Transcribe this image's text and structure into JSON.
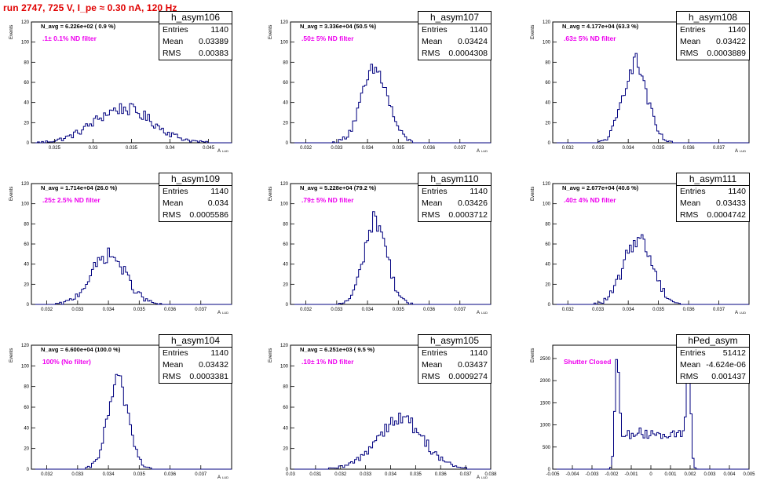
{
  "page_title": "run 2747,   725 V, I_pe ≈ 0.30 nA, 120 Hz",
  "chart_data": [
    {
      "type": "bar",
      "hist_name": "h_asym106",
      "navg": "N_avg = 6.226e+02 ( 0.9 %)",
      "filter": ".1± 0.1% ND filter",
      "entries": "1140",
      "mean": "0.03389",
      "rms": "0.00383",
      "ylabel": "Events",
      "xlabel": "A",
      "xlim": [
        0.022,
        0.048
      ],
      "ylim": [
        0,
        120
      ],
      "xticks": [
        0.025,
        0.03,
        0.035,
        0.04,
        0.045
      ],
      "xticklabels": [
        "0.025",
        "0.03",
        "0.035",
        "0.04",
        "0.045"
      ],
      "yticks": [
        0,
        20,
        40,
        60,
        80,
        100,
        120
      ],
      "shape": "gauss",
      "mu": 0.0339,
      "sigma": 0.0038,
      "peak": 34,
      "nbins": 100
    },
    {
      "type": "bar",
      "hist_name": "h_asym107",
      "navg": "N_avg = 3.336e+04 (50.5 %)",
      "filter": ".50± 5% ND filter",
      "entries": "1140",
      "mean": "0.03424",
      "rms": "0.0004308",
      "ylabel": "Events",
      "xlabel": "A",
      "xlim": [
        0.0315,
        0.038
      ],
      "ylim": [
        0,
        120
      ],
      "xticks": [
        0.032,
        0.033,
        0.034,
        0.035,
        0.036,
        0.037
      ],
      "xticklabels": [
        "0.032",
        "0.033",
        "0.034",
        "0.035",
        "0.036",
        "0.037"
      ],
      "yticks": [
        0,
        20,
        40,
        60,
        80,
        100,
        120
      ],
      "shape": "gauss",
      "mu": 0.03424,
      "sigma": 0.00043,
      "peak": 72,
      "nbins": 100
    },
    {
      "type": "bar",
      "hist_name": "h_asym108",
      "navg": "N_avg = 4.177e+04 (63.3 %)",
      "filter": ".63± 5% ND filter",
      "entries": "1140",
      "mean": "0.03422",
      "rms": "0.0003889",
      "ylabel": "Events",
      "xlabel": "A",
      "xlim": [
        0.0315,
        0.038
      ],
      "ylim": [
        0,
        120
      ],
      "xticks": [
        0.032,
        0.033,
        0.034,
        0.035,
        0.036,
        0.037
      ],
      "xticklabels": [
        "0.032",
        "0.033",
        "0.034",
        "0.035",
        "0.036",
        "0.037"
      ],
      "yticks": [
        0,
        20,
        40,
        60,
        80,
        100,
        120
      ],
      "shape": "gauss",
      "mu": 0.03422,
      "sigma": 0.00039,
      "peak": 80,
      "nbins": 100
    },
    {
      "type": "bar",
      "hist_name": "h_asym109",
      "navg": "N_avg = 1.714e+04 (26.0 %)",
      "filter": ".25± 2.5% ND filter",
      "entries": "1140",
      "mean": "0.034",
      "rms": "0.0005586",
      "ylabel": "Events",
      "xlabel": "A",
      "xlim": [
        0.0315,
        0.038
      ],
      "ylim": [
        0,
        120
      ],
      "xticks": [
        0.032,
        0.033,
        0.034,
        0.035,
        0.036,
        0.037
      ],
      "xticklabels": [
        "0.032",
        "0.033",
        "0.034",
        "0.035",
        "0.036",
        "0.037"
      ],
      "yticks": [
        0,
        20,
        40,
        60,
        80,
        100,
        120
      ],
      "shape": "gauss",
      "mu": 0.034,
      "sigma": 0.00056,
      "peak": 49,
      "nbins": 100
    },
    {
      "type": "bar",
      "hist_name": "h_asym110",
      "navg": "N_avg = 5.228e+04 (79.2 %)",
      "filter": ".79± 5% ND filter",
      "entries": "1140",
      "mean": "0.03426",
      "rms": "0.0003712",
      "ylabel": "Events",
      "xlabel": "A",
      "xlim": [
        0.0315,
        0.038
      ],
      "ylim": [
        0,
        120
      ],
      "xticks": [
        0.032,
        0.033,
        0.034,
        0.035,
        0.036,
        0.037
      ],
      "xticklabels": [
        "0.032",
        "0.033",
        "0.034",
        "0.035",
        "0.036",
        "0.037"
      ],
      "yticks": [
        0,
        20,
        40,
        60,
        80,
        100,
        120
      ],
      "shape": "gauss",
      "mu": 0.03426,
      "sigma": 0.00037,
      "peak": 84,
      "nbins": 100
    },
    {
      "type": "bar",
      "hist_name": "h_asym111",
      "navg": "N_avg = 2.677e+04 (40.6 %)",
      "filter": ".40± 4% ND filter",
      "entries": "1140",
      "mean": "0.03433",
      "rms": "0.0004742",
      "ylabel": "Events",
      "xlabel": "A",
      "xlim": [
        0.0315,
        0.038
      ],
      "ylim": [
        0,
        120
      ],
      "xticks": [
        0.032,
        0.033,
        0.034,
        0.035,
        0.036,
        0.037
      ],
      "xticklabels": [
        "0.032",
        "0.033",
        "0.034",
        "0.035",
        "0.036",
        "0.037"
      ],
      "yticks": [
        0,
        20,
        40,
        60,
        80,
        100,
        120
      ],
      "shape": "gauss",
      "mu": 0.03433,
      "sigma": 0.00047,
      "peak": 66,
      "nbins": 100
    },
    {
      "type": "bar",
      "hist_name": "h_asym104",
      "navg": "N_avg = 6.600e+04 (100.0 %)",
      "filter": "100% (No filter)",
      "entries": "1140",
      "mean": "0.03432",
      "rms": "0.0003381",
      "ylabel": "Events",
      "xlabel": "A",
      "xlim": [
        0.0315,
        0.038
      ],
      "ylim": [
        0,
        120
      ],
      "xticks": [
        0.032,
        0.033,
        0.034,
        0.035,
        0.036,
        0.037
      ],
      "xticklabels": [
        "0.032",
        "0.033",
        "0.034",
        "0.035",
        "0.036",
        "0.037"
      ],
      "yticks": [
        0,
        20,
        40,
        60,
        80,
        100,
        120
      ],
      "shape": "gauss",
      "mu": 0.03432,
      "sigma": 0.00034,
      "peak": 84,
      "nbins": 100
    },
    {
      "type": "bar",
      "hist_name": "h_asym105",
      "navg": "N_avg = 6.251e+03 ( 9.5 %)",
      "filter": ".10± 1% ND filter",
      "entries": "1140",
      "mean": "0.03437",
      "rms": "0.0009274",
      "ylabel": "Events",
      "xlabel": "A",
      "xlim": [
        0.03,
        0.038
      ],
      "ylim": [
        0,
        120
      ],
      "xticks": [
        0.03,
        0.031,
        0.032,
        0.033,
        0.034,
        0.035,
        0.036,
        0.037,
        0.038
      ],
      "xticklabels": [
        "0.03",
        "0.031",
        "0.032",
        "0.033",
        "0.034",
        "0.035",
        "0.036",
        "0.037",
        "0.038"
      ],
      "yticks": [
        0,
        20,
        40,
        60,
        80,
        100,
        120
      ],
      "shape": "gauss",
      "mu": 0.03437,
      "sigma": 0.00093,
      "peak": 49,
      "nbins": 100
    },
    {
      "type": "bar",
      "hist_name": "hPed_asym",
      "navg": "",
      "filter": "Shutter Closed",
      "entries": "51412",
      "mean": "-4.624e-06",
      "rms": "0.001437",
      "ylabel": "Events",
      "xlabel": "",
      "xlim": [
        -0.005,
        0.005
      ],
      "ylim": [
        0,
        2800
      ],
      "xticks": [
        -0.005,
        -0.004,
        -0.003,
        -0.002,
        -0.001,
        0,
        0.001,
        0.002,
        0.003,
        0.004,
        0.005
      ],
      "xticklabels": [
        "-0.005",
        "-0.004",
        "-0.003",
        "-0.002",
        "-0.001",
        "0",
        "0.001",
        "0.002",
        "0.003",
        "0.004",
        "0.005"
      ],
      "yticks": [
        0,
        500,
        1000,
        1500,
        2000,
        2500
      ],
      "shape": "bimodal",
      "nbins": 100
    }
  ]
}
